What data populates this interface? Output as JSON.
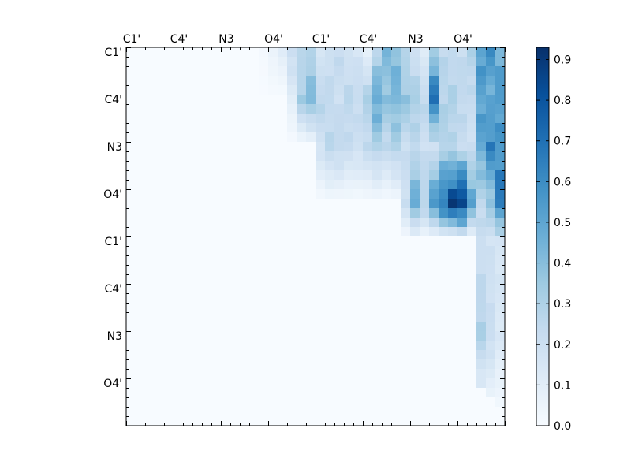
{
  "chart_data": {
    "type": "heatmap",
    "title": "",
    "xlabel": "",
    "ylabel": "",
    "x_tick_labels": [
      "C1'",
      "C4'",
      "N3",
      "O4'",
      "C1'",
      "C4'",
      "N3",
      "O4'"
    ],
    "y_tick_labels": [
      "C1'",
      "C4'",
      "N3",
      "O4'",
      "C1'",
      "C4'",
      "N3",
      "O4'"
    ],
    "x_ticks_position": "top",
    "colormap": "Blues",
    "value_range": [
      0.0,
      0.93
    ],
    "colorbar_ticks": [
      "0.0",
      "0.1",
      "0.2",
      "0.3",
      "0.4",
      "0.5",
      "0.6",
      "0.7",
      "0.8",
      "0.9"
    ],
    "colors": {
      "low": "#f7fbff",
      "mid": "#6baed6",
      "high": "#08306b"
    },
    "grid_size": 40,
    "note_values": "upper triangular matrix; remaining cells approx 0",
    "values": {
      "row_0": [
        0,
        0,
        0,
        0,
        0,
        0,
        0,
        0,
        0,
        0,
        0,
        0,
        0,
        0,
        0.02,
        0.06,
        0.1,
        0.22,
        0.25,
        0.3,
        0.14,
        0.2,
        0.24,
        0.18,
        0.16,
        0.08,
        0.28,
        0.42,
        0.4,
        0.26,
        0.2,
        0.1,
        0.34,
        0.26,
        0.24,
        0.22,
        0.3,
        0.55,
        0.58,
        0.45
      ],
      "row_5": [
        0,
        0,
        0,
        0,
        0,
        0,
        0,
        0,
        0,
        0,
        0,
        0,
        0,
        0,
        0,
        0,
        0,
        0.1,
        0.32,
        0.42,
        0.28,
        0.24,
        0.2,
        0.26,
        0.24,
        0.3,
        0.5,
        0.38,
        0.44,
        0.36,
        0.32,
        0.26,
        0.7,
        0.28,
        0.3,
        0.26,
        0.22,
        0.52,
        0.48,
        0.56
      ],
      "row_10": [
        0,
        0,
        0,
        0,
        0,
        0,
        0,
        0,
        0,
        0,
        0,
        0,
        0,
        0,
        0,
        0,
        0,
        0,
        0,
        0,
        0.18,
        0.26,
        0.26,
        0.22,
        0.2,
        0.24,
        0.3,
        0.24,
        0.3,
        0.22,
        0.24,
        0.2,
        0.18,
        0.3,
        0.26,
        0.22,
        0.2,
        0.5,
        0.62,
        0.55
      ],
      "row_16": [
        0,
        0,
        0,
        0,
        0,
        0,
        0,
        0,
        0,
        0,
        0,
        0,
        0,
        0,
        0,
        0,
        0,
        0,
        0,
        0,
        0,
        0,
        0,
        0,
        0,
        0,
        0,
        0,
        0,
        0.2,
        0.48,
        0.3,
        0.55,
        0.7,
        0.88,
        0.93,
        0.5,
        0.26,
        0.36,
        0.68
      ],
      "row_20": [
        0,
        0,
        0,
        0,
        0,
        0,
        0,
        0,
        0,
        0,
        0,
        0,
        0,
        0,
        0,
        0,
        0,
        0,
        0,
        0,
        0,
        0,
        0,
        0,
        0,
        0,
        0,
        0,
        0,
        0,
        0,
        0,
        0,
        0,
        0,
        0,
        0,
        0.2,
        0.18,
        0.16
      ],
      "row_30": [
        0,
        0,
        0,
        0,
        0,
        0,
        0,
        0,
        0,
        0,
        0,
        0,
        0,
        0,
        0,
        0,
        0,
        0,
        0,
        0,
        0,
        0,
        0,
        0,
        0,
        0,
        0,
        0,
        0,
        0,
        0,
        0,
        0,
        0,
        0,
        0,
        0,
        0.3,
        0.22,
        0.14
      ],
      "row_39": [
        0,
        0,
        0,
        0,
        0,
        0,
        0,
        0,
        0,
        0,
        0,
        0,
        0,
        0,
        0,
        0,
        0,
        0,
        0,
        0,
        0,
        0,
        0,
        0,
        0,
        0,
        0,
        0,
        0,
        0,
        0,
        0,
        0,
        0,
        0,
        0,
        0,
        0,
        0,
        0
      ]
    }
  }
}
